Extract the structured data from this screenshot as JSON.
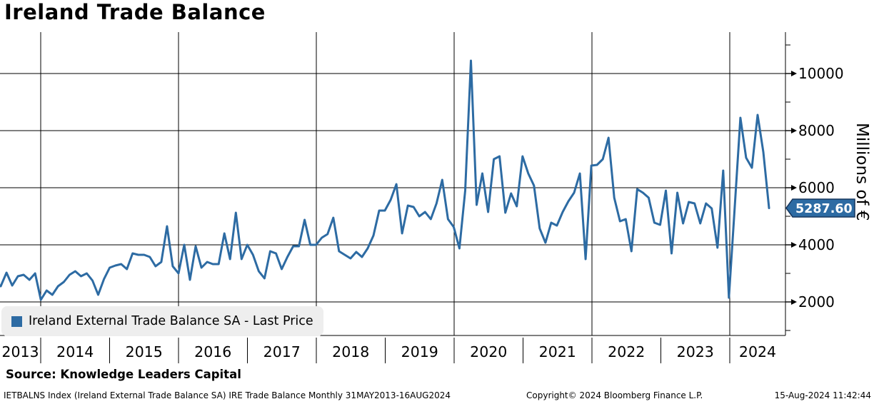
{
  "title": "Ireland Trade Balance",
  "source_line": "Source: Knowledge Leaders Capital",
  "footer": {
    "left": "IETBALNS Index (Ireland External Trade Balance SA) IRE Trade Balance  Monthly 31MAY2013-16AUG2024",
    "center": "Copyright© 2024 Bloomberg Finance L.P.",
    "right": "15-Aug-2024 11:42:44"
  },
  "legend": {
    "series_label": "Ireland External Trade Balance SA - Last Price",
    "swatch_color": "#2d6ba3"
  },
  "last_price_label": "5287.60",
  "colors": {
    "line": "#2d6ba3",
    "tag_fill": "#2d6ba3",
    "tag_border": "#17365d",
    "tag_text": "#ffffff",
    "grid": "#000000",
    "legend_bg": "#eeeeee"
  },
  "chart_data": {
    "type": "line",
    "title": "Ireland Trade Balance",
    "ylabel": "Millions of €",
    "frequency": "monthly",
    "x_start": "2013-05",
    "x_end": "2024-08",
    "ylim": [
      825,
      11400
    ],
    "yticks": [
      2000,
      4000,
      6000,
      8000,
      10000
    ],
    "yticks_minor": [
      1000,
      3000,
      5000,
      7000,
      9000,
      11000
    ],
    "xticklabels": [
      "2013",
      "2014",
      "2015",
      "2016",
      "2017",
      "2018",
      "2019",
      "2020",
      "2021",
      "2022",
      "2023",
      "2024"
    ],
    "grid_vertical_years": [
      "2014",
      "2016",
      "2018",
      "2020",
      "2022",
      "2024"
    ],
    "legend_position": "bottom-left",
    "grid": true,
    "last_price": 5287.6,
    "series": [
      {
        "name": "Ireland External Trade Balance SA - Last Price",
        "color": "#2d6ba3",
        "values": [
          2700,
          2550,
          3025,
          2575,
          2900,
          2950,
          2775,
          3000,
          2075,
          2400,
          2250,
          2550,
          2700,
          2950,
          3075,
          2900,
          3000,
          2750,
          2250,
          2800,
          3200,
          3275,
          3325,
          3150,
          3700,
          3650,
          3650,
          3575,
          3250,
          3400,
          4650,
          3250,
          3000,
          4000,
          2775,
          3950,
          3200,
          3400,
          3325,
          3325,
          4400,
          3500,
          5125,
          3500,
          4000,
          3650,
          3075,
          2825,
          3775,
          3700,
          3150,
          3575,
          3950,
          3950,
          4875,
          4000,
          4000,
          4250,
          4375,
          4950,
          3775,
          3650,
          3525,
          3750,
          3575,
          3875,
          4325,
          5200,
          5200,
          5575,
          6125,
          4400,
          5375,
          5325,
          5000,
          5150,
          4900,
          5450,
          6275,
          4900,
          4625,
          3875,
          5900,
          10450,
          5400,
          6500,
          5150,
          7000,
          7100,
          5125,
          5800,
          5350,
          7100,
          6500,
          6075,
          4575,
          4075,
          4775,
          4675,
          5150,
          5525,
          5825,
          6500,
          3500,
          6775,
          6800,
          7000,
          7750,
          5650,
          4825,
          4900,
          3775,
          5950,
          5825,
          5650,
          4775,
          4700,
          5900,
          3700,
          5825,
          4750,
          5500,
          5450,
          4750,
          5450,
          5275,
          3900,
          6600,
          2150,
          5300,
          8450,
          7050,
          6700,
          8550,
          7250,
          5287.6
        ]
      }
    ]
  }
}
